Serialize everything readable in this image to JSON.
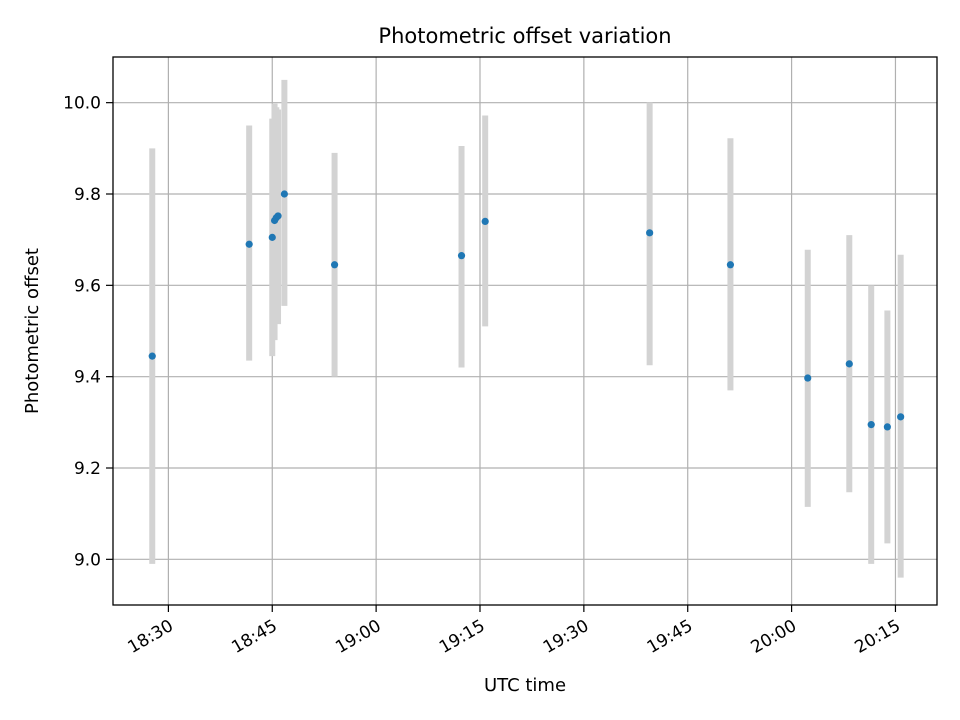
{
  "chart_data": {
    "type": "scatter",
    "title": "Photometric offset variation",
    "xlabel": "UTC time",
    "ylabel": "Photometric offset",
    "ylim": [
      8.9,
      10.1
    ],
    "xlim": [
      "18:22",
      "20:21"
    ],
    "x_ticks": [
      "18:30",
      "18:45",
      "19:00",
      "19:15",
      "19:30",
      "19:45",
      "20:00",
      "20:15"
    ],
    "y_ticks": [
      "9.0",
      "9.2",
      "9.4",
      "9.6",
      "9.8",
      "10.0"
    ],
    "grid": true,
    "colors": {
      "point": "#1f77b4",
      "error_bar": "#d3d3d3",
      "grid": "#b0b0b0",
      "axis": "#000000"
    },
    "series": [
      {
        "points": [
          {
            "x": "18:27:40",
            "y": 9.445,
            "ylow": 8.99,
            "yhigh": 9.9
          },
          {
            "x": "18:41:40",
            "y": 9.69,
            "ylow": 9.435,
            "yhigh": 9.95
          },
          {
            "x": "18:45:00",
            "y": 9.705,
            "ylow": 9.445,
            "yhigh": 9.965
          },
          {
            "x": "18:45:20",
            "y": 9.742,
            "ylow": 9.48,
            "yhigh": 9.998
          },
          {
            "x": "18:45:35",
            "y": 9.748,
            "ylow": 9.52,
            "yhigh": 9.99
          },
          {
            "x": "18:45:50",
            "y": 9.752,
            "ylow": 9.515,
            "yhigh": 9.985
          },
          {
            "x": "18:46:45",
            "y": 9.8,
            "ylow": 9.555,
            "yhigh": 10.05
          },
          {
            "x": "18:54:00",
            "y": 9.645,
            "ylow": 9.4,
            "yhigh": 9.89
          },
          {
            "x": "19:12:20",
            "y": 9.665,
            "ylow": 9.42,
            "yhigh": 9.905
          },
          {
            "x": "19:15:45",
            "y": 9.74,
            "ylow": 9.51,
            "yhigh": 9.972
          },
          {
            "x": "19:39:30",
            "y": 9.715,
            "ylow": 9.425,
            "yhigh": 10.0
          },
          {
            "x": "19:51:10",
            "y": 9.645,
            "ylow": 9.37,
            "yhigh": 9.922
          },
          {
            "x": "20:02:20",
            "y": 9.397,
            "ylow": 9.115,
            "yhigh": 9.678
          },
          {
            "x": "20:08:20",
            "y": 9.428,
            "ylow": 9.147,
            "yhigh": 9.71
          },
          {
            "x": "20:11:30",
            "y": 9.295,
            "ylow": 8.99,
            "yhigh": 9.6
          },
          {
            "x": "20:13:50",
            "y": 9.29,
            "ylow": 9.035,
            "yhigh": 9.545
          },
          {
            "x": "20:15:45",
            "y": 9.312,
            "ylow": 8.96,
            "yhigh": 9.667
          }
        ]
      }
    ]
  }
}
